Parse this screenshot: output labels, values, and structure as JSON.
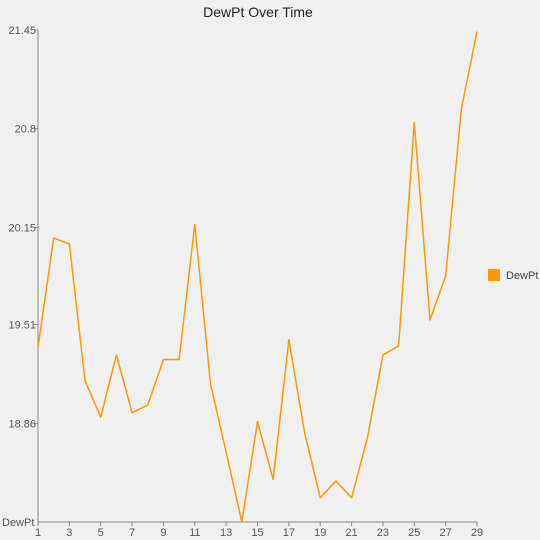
{
  "chart_data": {
    "type": "line",
    "title": "DewPt Over Time",
    "ylabel": "DewPt",
    "xlabel": "",
    "x": [
      1,
      2,
      3,
      4,
      5,
      6,
      7,
      8,
      9,
      10,
      11,
      12,
      13,
      14,
      15,
      16,
      17,
      18,
      19,
      20,
      21,
      22,
      23,
      24,
      25,
      26,
      27,
      28,
      29
    ],
    "x_tick_labels": [
      "1",
      "3",
      "5",
      "7",
      "9",
      "11",
      "13",
      "15",
      "17",
      "19",
      "21",
      "23",
      "25",
      "27",
      "29"
    ],
    "y_tick_labels": [
      "18.86",
      "19.51",
      "20.15",
      "20.8",
      "21.45"
    ],
    "ylim": [
      18.21,
      21.45
    ],
    "xlim": [
      1,
      29
    ],
    "series": [
      {
        "name": "DewPt",
        "color": "#ff9900",
        "values": [
          19.36,
          20.08,
          20.04,
          19.14,
          18.9,
          19.31,
          18.93,
          18.98,
          19.28,
          19.28,
          20.17,
          19.12,
          18.67,
          18.21,
          18.87,
          18.49,
          19.41,
          18.8,
          18.37,
          18.48,
          18.37,
          18.76,
          19.31,
          19.37,
          20.84,
          19.54,
          19.83,
          20.93,
          21.44
        ]
      }
    ],
    "legend": "right",
    "grid": false
  }
}
